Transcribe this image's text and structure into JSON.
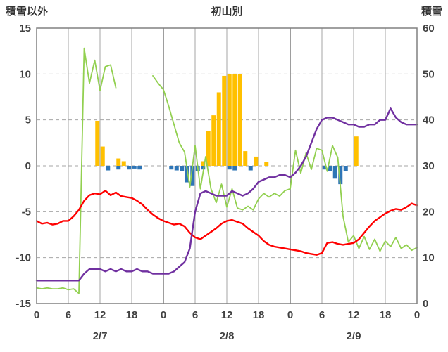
{
  "header": {
    "left_axis_title": "積雪以外",
    "chart_title": "初山別",
    "right_axis_title": "積雪"
  },
  "chart_data": {
    "type": "combo",
    "title": "初山別",
    "x": {
      "total_hours": 72,
      "tick_step": 6,
      "tick_labels": [
        "0",
        "6",
        "12",
        "18",
        "0",
        "6",
        "12",
        "18",
        "0",
        "6",
        "12",
        "18",
        "0"
      ],
      "date_labels": [
        {
          "label": "2/7",
          "hour": 12
        },
        {
          "label": "2/8",
          "hour": 36
        },
        {
          "label": "2/9",
          "hour": 60
        }
      ]
    },
    "left_axis": {
      "title": "積雪以外",
      "min": -15,
      "max": 15,
      "tick_step": 5,
      "ticks": [
        15,
        10,
        5,
        0,
        -5,
        -10,
        -15
      ]
    },
    "right_axis": {
      "title": "積雪",
      "min": 0,
      "max": 60,
      "tick_step": 10,
      "ticks": [
        60,
        50,
        40,
        30,
        20,
        10,
        0
      ]
    },
    "grid": {
      "h_color": "#a6a6a6",
      "v_color": "#a6a6a6",
      "day_color": "#7f7f7f",
      "border": "#808080",
      "text_color": "#404040"
    },
    "series": [
      {
        "name": "orange-bars",
        "type": "bar",
        "axis": "left",
        "color": "#FFC000",
        "points": [
          [
            11,
            4.9
          ],
          [
            12,
            2.1
          ],
          [
            15,
            0.8
          ],
          [
            16,
            0.5
          ],
          [
            31,
            0.5
          ],
          [
            32,
            3.8
          ],
          [
            33,
            5.5
          ],
          [
            34,
            8.0
          ],
          [
            35,
            9.8
          ],
          [
            36,
            10
          ],
          [
            37,
            10
          ],
          [
            38,
            10
          ],
          [
            39,
            1.6
          ],
          [
            41,
            1.0
          ],
          [
            43,
            0.4
          ],
          [
            60,
            3.2
          ]
        ]
      },
      {
        "name": "blue-bars",
        "type": "bar",
        "axis": "left",
        "color": "#2E75B6",
        "points": [
          [
            13,
            -0.5
          ],
          [
            15,
            -0.4
          ],
          [
            17,
            -0.4
          ],
          [
            18,
            -0.3
          ],
          [
            19,
            -0.4
          ],
          [
            25,
            -0.4
          ],
          [
            26,
            -0.5
          ],
          [
            27,
            -0.6
          ],
          [
            28,
            -1.8
          ],
          [
            29,
            -2.2
          ],
          [
            30,
            -0.6
          ],
          [
            31,
            -0.4
          ],
          [
            36,
            -0.4
          ],
          [
            37,
            -0.5
          ],
          [
            40,
            -0.5
          ],
          [
            54,
            -0.4
          ],
          [
            55,
            -0.6
          ],
          [
            56,
            -1.4
          ],
          [
            57,
            -2.0
          ],
          [
            58,
            -0.6
          ]
        ]
      },
      {
        "name": "green-line",
        "type": "line",
        "axis": "left",
        "color": "#92D050",
        "width": 1.8,
        "values": [
          -13.3,
          -13.4,
          -13.3,
          -13.4,
          -13.4,
          -13.3,
          -13.5,
          -13.4,
          -13.9,
          12.8,
          9.0,
          11.5,
          8.2,
          10.8,
          11.0,
          8.5,
          null,
          null,
          null,
          null,
          null,
          null,
          9.8,
          9.0,
          8.3,
          6.5,
          4.5,
          2.5,
          1.5,
          -2.3,
          2.2,
          -2.5,
          1.0,
          -2.5,
          -4.0,
          -2.0,
          -4.5,
          -2.5,
          -4.6,
          -4.8,
          -4.4,
          -4.8,
          -3.6,
          -3.0,
          -3.4,
          -3.0,
          -3.3,
          -2.7,
          -2.5,
          1.7,
          -0.8,
          1.4,
          -0.4,
          1.9,
          1.7,
          -0.6,
          2.2,
          0.9,
          -5.5,
          -8.3,
          -7.6,
          -9.0,
          -7.7,
          -9.1,
          -8.0,
          -9.3,
          -8.2,
          -8.8,
          -7.8,
          -9.0,
          -8.6,
          -9.2,
          -8.9
        ]
      },
      {
        "name": "red-line",
        "type": "line",
        "axis": "left",
        "color": "#FF0000",
        "width": 2.4,
        "values": [
          -6.0,
          -6.3,
          -6.2,
          -6.4,
          -6.3,
          -6.0,
          -6.0,
          -5.5,
          -4.8,
          -3.8,
          -3.2,
          -3.0,
          -3.1,
          -2.7,
          -3.2,
          -2.9,
          -3.3,
          -3.4,
          -3.5,
          -3.8,
          -4.2,
          -4.8,
          -5.3,
          -5.7,
          -6.0,
          -6.2,
          -6.4,
          -6.3,
          -6.6,
          -7.3,
          -7.8,
          -8.0,
          -7.6,
          -7.2,
          -6.8,
          -6.3,
          -6.0,
          -5.9,
          -6.1,
          -6.3,
          -6.8,
          -7.2,
          -7.6,
          -8.2,
          -8.6,
          -8.8,
          -8.9,
          -9.0,
          -9.1,
          -9.2,
          -9.3,
          -9.5,
          -9.6,
          -9.7,
          -9.5,
          -8.4,
          -8.3,
          -8.5,
          -8.6,
          -8.5,
          -8.4,
          -8.0,
          -7.3,
          -6.6,
          -6.0,
          -5.6,
          -5.2,
          -4.9,
          -4.7,
          -4.8,
          -4.5,
          -4.1,
          -4.3
        ]
      },
      {
        "name": "purple-line",
        "type": "line",
        "axis": "right",
        "color": "#7030A0",
        "width": 2.4,
        "values": [
          5,
          5,
          5,
          5,
          5,
          5,
          5,
          5,
          5,
          6.5,
          7.5,
          7.5,
          7.5,
          7,
          7.5,
          7,
          7.5,
          7,
          7,
          7.5,
          7,
          7,
          6.5,
          6.5,
          6.5,
          6.5,
          7,
          8,
          9,
          12,
          20,
          24,
          24.5,
          24,
          23.5,
          23.5,
          23.5,
          24.5,
          24,
          23.5,
          24,
          25,
          26.5,
          27,
          27.5,
          27.5,
          28,
          28,
          27.5,
          28.5,
          30,
          32,
          35,
          38,
          40,
          40.5,
          40.5,
          40,
          39.5,
          39,
          39,
          38.5,
          38.5,
          39,
          39,
          40,
          40,
          42.5,
          40.5,
          39.5,
          39,
          39,
          39
        ]
      }
    ]
  }
}
